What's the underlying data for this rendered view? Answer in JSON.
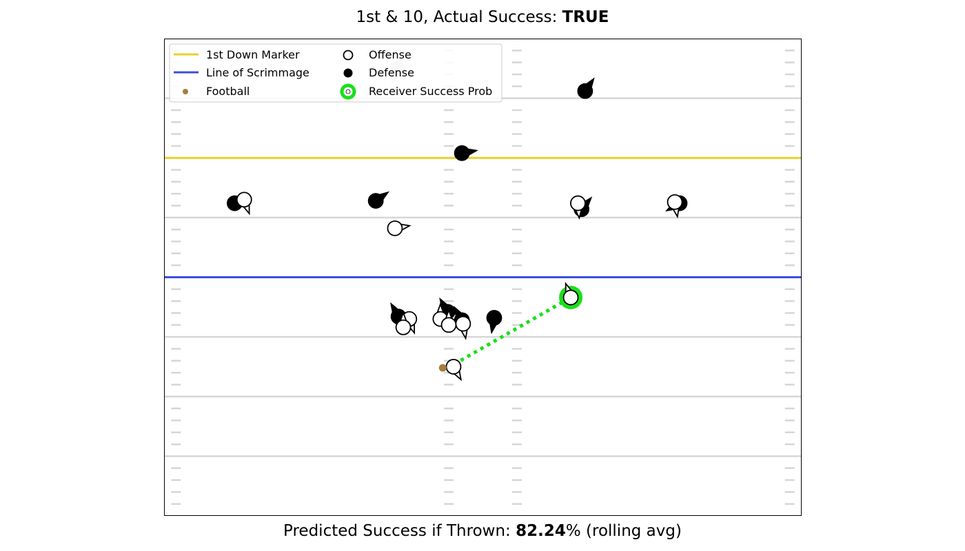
{
  "title": {
    "prefix": "1st & 10, Actual Success: ",
    "value": "TRUE"
  },
  "footer": {
    "prefix": "Predicted Success if Thrown: ",
    "value": "82.24",
    "suffix": "% (rolling avg)"
  },
  "legend": {
    "first_down": "1st Down Marker",
    "los": "Line of Scrimmage",
    "football": "Football",
    "offense": "Offense",
    "defense": "Defense",
    "receiver": "Receiver Success Prob"
  },
  "colors": {
    "first_down": "#e8d02c",
    "los": "#3b4fe0",
    "football": "#a67c3d",
    "receiver_ring": "#19e019",
    "yard_line": "#d6d6d6",
    "ghost": "#cccccc"
  },
  "chart_data": {
    "type": "scatter",
    "title": "1st & 10, Actual Success: TRUE",
    "xlim": [
      0,
      53.3
    ],
    "ylim": [
      0,
      40
    ],
    "yard_lines": [
      5,
      10,
      15,
      20,
      25,
      30,
      35
    ],
    "first_down_y": 30,
    "line_of_scrimmage_y": 20,
    "offense": [
      {
        "x": 6.7,
        "y": 26.5,
        "dir": 160
      },
      {
        "x": 19.3,
        "y": 24.1,
        "dir": 80
      },
      {
        "x": 34.6,
        "y": 26.2,
        "dir": 175
      },
      {
        "x": 42.7,
        "y": 26.3,
        "dir": 170
      },
      {
        "x": 20.5,
        "y": 16.5,
        "dir": 160
      },
      {
        "x": 20.0,
        "y": 15.8,
        "dir": 0
      },
      {
        "x": 23.1,
        "y": 16.5,
        "dir": 0
      },
      {
        "x": 23.8,
        "y": 16.0,
        "dir": 0
      },
      {
        "x": 25.0,
        "y": 16.1,
        "dir": 170
      },
      {
        "x": 34.0,
        "y": 18.3,
        "dir": 340
      },
      {
        "x": 24.2,
        "y": 12.5,
        "dir": 150
      }
    ],
    "defense": [
      {
        "x": 5.9,
        "y": 26.2,
        "dir": 60
      },
      {
        "x": 17.7,
        "y": 26.4,
        "dir": 55
      },
      {
        "x": 24.9,
        "y": 30.4,
        "dir": 80
      },
      {
        "x": 35.2,
        "y": 35.6,
        "dir": 35
      },
      {
        "x": 34.9,
        "y": 25.7,
        "dir": 40
      },
      {
        "x": 43.1,
        "y": 26.2,
        "dir": 240
      },
      {
        "x": 19.6,
        "y": 16.7,
        "dir": 330
      },
      {
        "x": 23.7,
        "y": 17.1,
        "dir": 330
      },
      {
        "x": 24.9,
        "y": 16.4,
        "dir": 330
      },
      {
        "x": 27.6,
        "y": 16.6,
        "dir": 190
      }
    ],
    "ghost": [
      {
        "x": 19.5,
        "y": 37.5,
        "dir": 200
      }
    ],
    "football": {
      "x": 23.7,
      "y": 12.4
    },
    "target_receiver": {
      "x": 34.0,
      "y": 18.3,
      "success_prob": 82.24
    },
    "predicted_success_pct": 82.24
  }
}
